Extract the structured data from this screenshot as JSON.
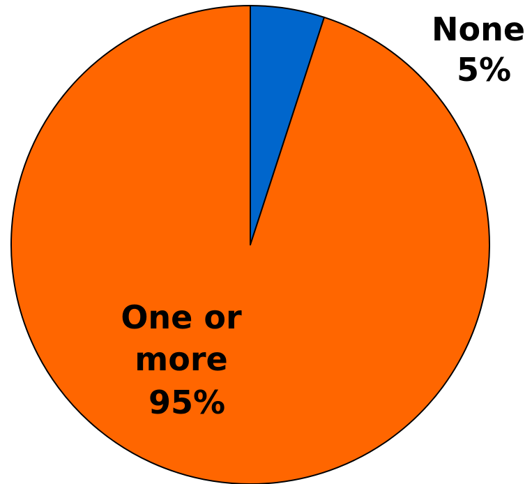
{
  "chart_data": {
    "type": "pie",
    "title": "",
    "slices": [
      {
        "label_lines": [
          "None"
        ],
        "value_label": "5%",
        "value": 5,
        "color": "#0066CC"
      },
      {
        "label_lines": [
          "One or",
          "more"
        ],
        "value_label": "95%",
        "value": 95,
        "color": "#FF6600"
      }
    ],
    "start_angle": "12 o'clock",
    "direction": "clockwise",
    "outline_color": "#000000",
    "legend": "none"
  }
}
